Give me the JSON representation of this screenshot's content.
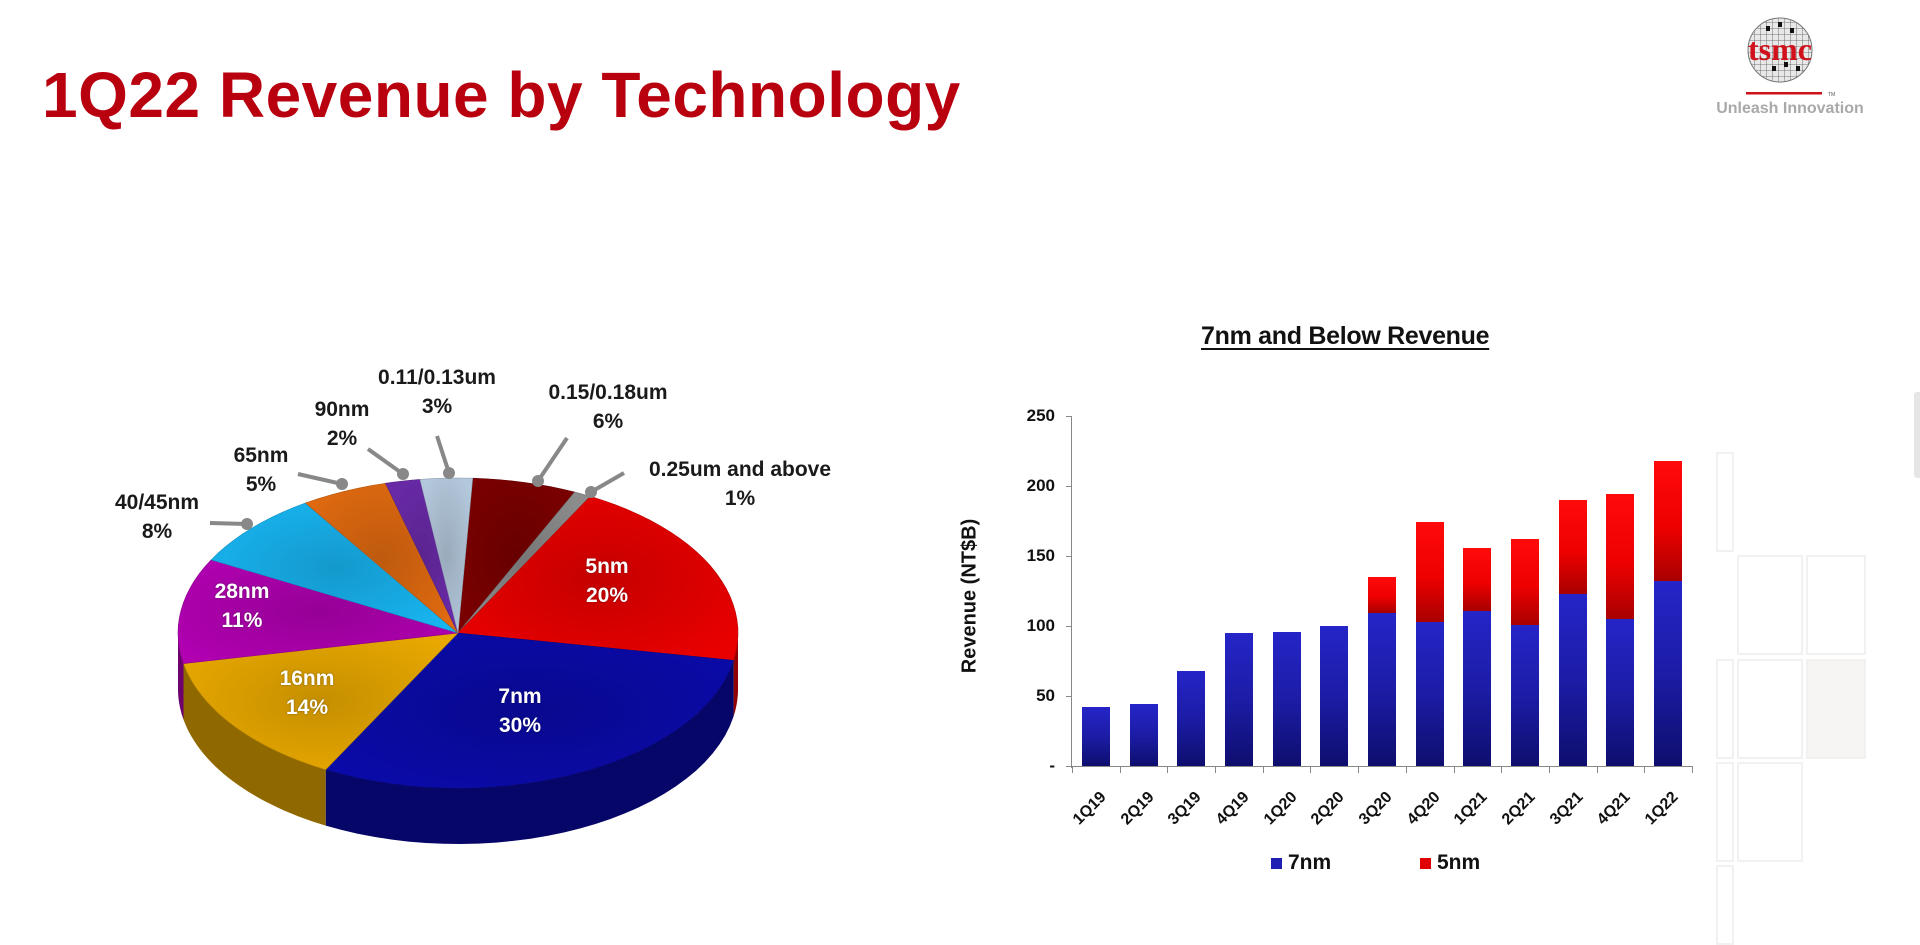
{
  "page": {
    "title": "1Q22 Revenue by Technology",
    "logo": {
      "brand": "tsmc",
      "tagline": "Unleash Innovation",
      "brand_color": "#d0101a"
    }
  },
  "pie": {
    "labels": [
      {
        "name": "0.15/0.18um",
        "pct": "6%"
      },
      {
        "name": "0.25um and above",
        "pct": "1%"
      },
      {
        "name": "5nm",
        "pct": "20%"
      },
      {
        "name": "7nm",
        "pct": "30%"
      },
      {
        "name": "16nm",
        "pct": "14%"
      },
      {
        "name": "28nm",
        "pct": "11%"
      },
      {
        "name": "40/45nm",
        "pct": "8%"
      },
      {
        "name": "65nm",
        "pct": "5%"
      },
      {
        "name": "90nm",
        "pct": "2%"
      },
      {
        "name": "0.11/0.13um",
        "pct": "3%"
      }
    ]
  },
  "bar": {
    "title": "7nm and Below Revenue",
    "ylabel": "Revenue (NT$B)",
    "yticks": [
      "-",
      "50",
      "100",
      "150",
      "200",
      "250"
    ],
    "categories": [
      "1Q19",
      "2Q19",
      "3Q19",
      "4Q19",
      "1Q20",
      "2Q20",
      "3Q20",
      "4Q20",
      "1Q21",
      "2Q21",
      "3Q21",
      "4Q21",
      "1Q22"
    ],
    "legend": [
      {
        "label": "7nm",
        "color": "#1f1fb4"
      },
      {
        "label": "5nm",
        "color": "#e00000"
      }
    ]
  },
  "chart_data": [
    {
      "type": "pie",
      "title": "1Q22 Revenue by Technology",
      "categories": [
        "0.15/0.18um",
        "0.25um and above",
        "5nm",
        "7nm",
        "16nm",
        "28nm",
        "40/45nm",
        "65nm",
        "90nm",
        "0.11/0.13um"
      ],
      "values": [
        6,
        1,
        20,
        30,
        14,
        11,
        8,
        5,
        2,
        3
      ],
      "colors": [
        "#7a0000",
        "#8c8c8c",
        "#e80000",
        "#0a0aa8",
        "#e8a800",
        "#b000b0",
        "#18b4f0",
        "#e06a10",
        "#6a2aa8",
        "#b4c8dc"
      ],
      "unit": "%",
      "style": "3d"
    },
    {
      "type": "bar",
      "stacked": true,
      "title": "7nm and Below Revenue",
      "xlabel": "",
      "ylabel": "Revenue (NT$B)",
      "ylim": [
        0,
        250
      ],
      "yticks": [
        0,
        50,
        100,
        150,
        200,
        250
      ],
      "categories": [
        "1Q19",
        "2Q19",
        "3Q19",
        "4Q19",
        "1Q20",
        "2Q20",
        "3Q20",
        "4Q20",
        "1Q21",
        "2Q21",
        "3Q21",
        "4Q21",
        "1Q22"
      ],
      "series": [
        {
          "name": "7nm",
          "color": "#1f1fb4",
          "values": [
            42,
            44,
            68,
            95,
            96,
            100,
            109,
            103,
            111,
            101,
            123,
            105,
            132
          ]
        },
        {
          "name": "5nm",
          "color": "#e00000",
          "values": [
            0,
            0,
            0,
            0,
            0,
            0,
            26,
            71,
            45,
            61,
            67,
            89,
            86
          ]
        }
      ],
      "legend_position": "bottom",
      "grid": false
    }
  ]
}
